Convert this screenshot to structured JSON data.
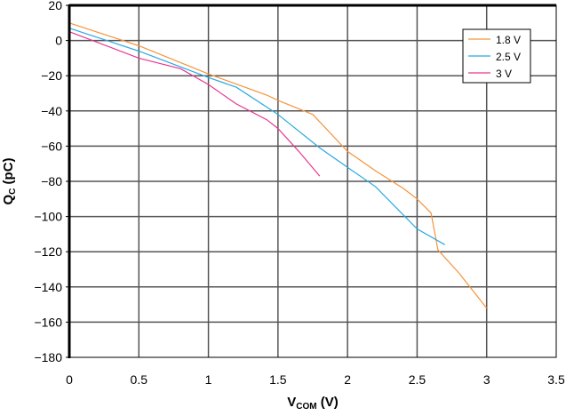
{
  "chart_data": {
    "type": "line",
    "title": "",
    "xlabel": {
      "main": "V",
      "sub": "COM",
      "unit": " (V)"
    },
    "ylabel": {
      "main": "Q",
      "sub": "C",
      "unit": " (pC)"
    },
    "xlim": [
      0,
      3.5
    ],
    "ylim": [
      -180,
      20
    ],
    "xticks": [
      "0",
      "0.5",
      "1",
      "1.5",
      "2",
      "2.5",
      "3",
      "3.5"
    ],
    "yticks": [
      "20",
      "0",
      "−20",
      "−40",
      "−60",
      "−80",
      "−100",
      "−120",
      "−140",
      "−160",
      "−180"
    ],
    "grid": true,
    "legend_position": "top-right",
    "series": [
      {
        "name": "1.8 V",
        "color": "#f7923a",
        "x": [
          0,
          0.5,
          1.0,
          1.42,
          1.5,
          1.75,
          2.0,
          2.2,
          2.4,
          2.5,
          2.6,
          2.65,
          2.8,
          3.0
        ],
        "y": [
          10,
          -3,
          -19,
          -31,
          -34,
          -42,
          -63,
          -74,
          -84,
          -90,
          -98,
          -119,
          -132,
          -152
        ]
      },
      {
        "name": "2.5 V",
        "color": "#29a9e1",
        "x": [
          0,
          0.5,
          1.0,
          1.2,
          1.5,
          1.8,
          2.0,
          2.2,
          2.5,
          2.7
        ],
        "y": [
          7,
          -6,
          -21,
          -26.5,
          -42,
          -61,
          -72,
          -83,
          -107,
          -116
        ]
      },
      {
        "name": "3 V",
        "color": "#e8378f",
        "x": [
          0,
          0.5,
          0.8,
          1.0,
          1.2,
          1.42,
          1.5,
          1.65,
          1.8
        ],
        "y": [
          5,
          -10,
          -16,
          -25,
          -36,
          -45,
          -50,
          -63,
          -77
        ]
      }
    ]
  }
}
